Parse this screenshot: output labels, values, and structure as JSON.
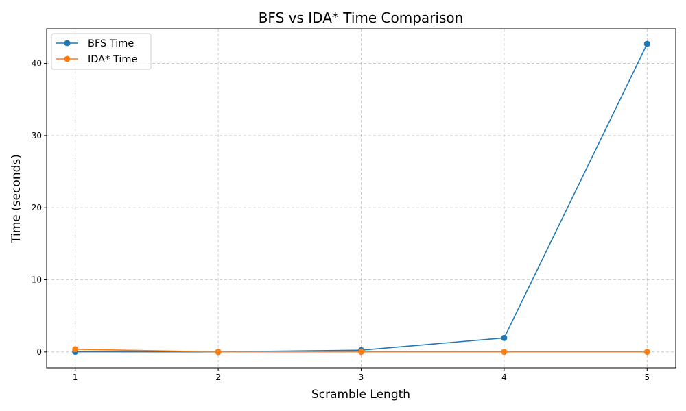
{
  "chart_data": {
    "type": "line",
    "title": "BFS vs IDA* Time Comparison",
    "xlabel": "Scramble Length",
    "ylabel": "Time (seconds)",
    "x": [
      1,
      2,
      3,
      4,
      5
    ],
    "x_ticks": [
      "1",
      "2",
      "3",
      "4",
      "5"
    ],
    "y_ticks": [
      "0",
      "10",
      "20",
      "30",
      "40"
    ],
    "ylim": [
      -2.2,
      44.8
    ],
    "xlim": [
      0.8,
      5.2
    ],
    "grid": true,
    "grid_style": "dashed",
    "legend_position": "upper-left",
    "markers": "circle",
    "series": [
      {
        "name": "BFS Time",
        "color": "#1f77b4",
        "values": [
          0.02,
          0.01,
          0.25,
          1.95,
          42.7
        ]
      },
      {
        "name": "IDA* Time",
        "color": "#ff7f0e",
        "values": [
          0.38,
          0.01,
          0.01,
          0.01,
          0.01
        ]
      }
    ]
  }
}
